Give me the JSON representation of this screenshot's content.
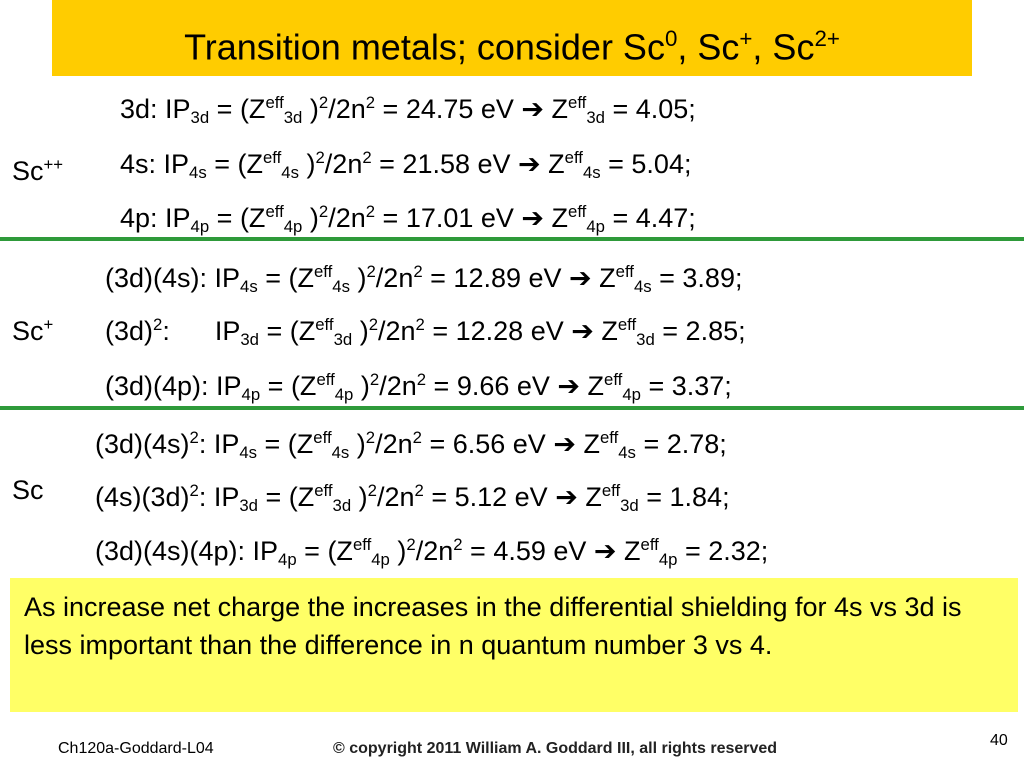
{
  "title": {
    "runs": [
      "Transition metals; consider Sc",
      {
        "sup": "0"
      },
      ", Sc",
      {
        "sup": "+"
      },
      ", Sc",
      {
        "sup": "2+"
      }
    ]
  },
  "sections": [
    {
      "label": {
        "runs": [
          "Sc",
          {
            "sup": "++"
          }
        ]
      },
      "lines": [
        {
          "runs": [
            "3d: IP",
            {
              "sub": "3d"
            },
            " = (Z",
            {
              "sup": "eff"
            },
            {
              "sub": "3d"
            },
            " )",
            {
              "sup": "2"
            },
            "/2n",
            {
              "sup": "2"
            },
            " = 24.75 eV ➔ Z",
            {
              "sup": "eff"
            },
            {
              "sub": "3d"
            },
            " = 4.05;"
          ]
        },
        {
          "runs": [
            "4s: IP",
            {
              "sub": "4s"
            },
            " = (Z",
            {
              "sup": "eff"
            },
            {
              "sub": "4s"
            },
            " )",
            {
              "sup": "2"
            },
            "/2n",
            {
              "sup": "2"
            },
            " = 21.58 eV ➔ Z",
            {
              "sup": "eff"
            },
            {
              "sub": "4s"
            },
            " = 5.04;"
          ]
        },
        {
          "runs": [
            "4p: IP",
            {
              "sub": "4p"
            },
            " = (Z",
            {
              "sup": "eff"
            },
            {
              "sub": "4p"
            },
            " )",
            {
              "sup": "2"
            },
            "/2n",
            {
              "sup": "2"
            },
            " = 17.01 eV ➔ Z",
            {
              "sup": "eff"
            },
            {
              "sub": "4p"
            },
            " = 4.47;"
          ]
        }
      ]
    },
    {
      "label": {
        "runs": [
          "Sc",
          {
            "sup": "+"
          }
        ]
      },
      "lines": [
        {
          "runs": [
            "(3d)(4s): IP",
            {
              "sub": "4s"
            },
            " = (Z",
            {
              "sup": "eff"
            },
            {
              "sub": "4s"
            },
            " )",
            {
              "sup": "2"
            },
            "/2n",
            {
              "sup": "2"
            },
            " = 12.89 eV ➔ Z",
            {
              "sup": "eff"
            },
            {
              "sub": "4s"
            },
            " = 3.89;"
          ]
        },
        {
          "runs": [
            "(3d)",
            {
              "sup": "2"
            },
            ":      IP",
            {
              "sub": "3d"
            },
            " = (Z",
            {
              "sup": "eff"
            },
            {
              "sub": "3d"
            },
            " )",
            {
              "sup": "2"
            },
            "/2n",
            {
              "sup": "2"
            },
            " = 12.28 eV ➔ Z",
            {
              "sup": "eff"
            },
            {
              "sub": "3d"
            },
            " = 2.85;"
          ]
        },
        {
          "runs": [
            "(3d)(4p): IP",
            {
              "sub": "4p"
            },
            " = (Z",
            {
              "sup": "eff"
            },
            {
              "sub": "4p"
            },
            " )",
            {
              "sup": "2"
            },
            "/2n",
            {
              "sup": "2"
            },
            " = 9.66 eV ➔ Z",
            {
              "sup": "eff"
            },
            {
              "sub": "4p"
            },
            " = 3.37;"
          ]
        }
      ]
    },
    {
      "label": {
        "runs": [
          "Sc"
        ]
      },
      "lines": [
        {
          "runs": [
            "(3d)(4s)",
            {
              "sup": "2"
            },
            ": IP",
            {
              "sub": "4s"
            },
            " = (Z",
            {
              "sup": "eff"
            },
            {
              "sub": "4s"
            },
            " )",
            {
              "sup": "2"
            },
            "/2n",
            {
              "sup": "2"
            },
            " = 6.56 eV ➔ Z",
            {
              "sup": "eff"
            },
            {
              "sub": "4s"
            },
            " = 2.78;"
          ]
        },
        {
          "runs": [
            "(4s)(3d)",
            {
              "sup": "2"
            },
            ": IP",
            {
              "sub": "3d"
            },
            " = (Z",
            {
              "sup": "eff"
            },
            {
              "sub": "3d"
            },
            " )",
            {
              "sup": "2"
            },
            "/2n",
            {
              "sup": "2"
            },
            " = 5.12 eV ➔ Z",
            {
              "sup": "eff"
            },
            {
              "sub": "3d"
            },
            " = 1.84;"
          ]
        },
        {
          "runs": [
            "(3d)(4s)(4p): IP",
            {
              "sub": "4p"
            },
            " = (Z",
            {
              "sup": "eff"
            },
            {
              "sub": "4p"
            },
            " )",
            {
              "sup": "2"
            },
            "/2n",
            {
              "sup": "2"
            },
            " = 4.59 eV ➔ Z",
            {
              "sup": "eff"
            },
            {
              "sub": "4p"
            },
            " = 2.32;"
          ]
        }
      ]
    }
  ],
  "note": "As increase net charge the increases in the differential shielding for 4s vs 3d is less important than the difference in n quantum number 3 vs 4.",
  "footer": {
    "course": "Ch120a-Goddard-L04",
    "copyright": "© copyright 2011 William A. Goddard III, all rights reserved",
    "page": "40"
  }
}
